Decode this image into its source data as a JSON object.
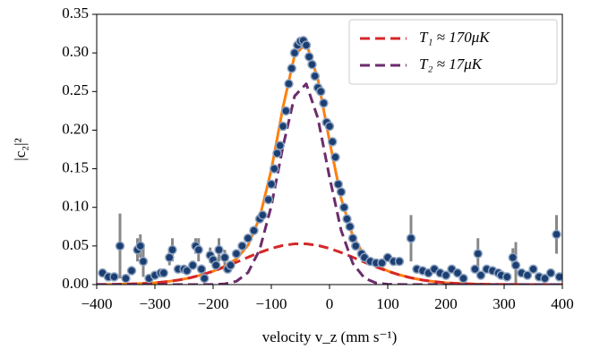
{
  "chart_data": {
    "type": "line",
    "x_label": "velocity v_z (mm s⁻¹)",
    "y_label": "|c₂|²",
    "xlim": [
      -400,
      400
    ],
    "ylim": [
      0,
      0.35
    ],
    "xticks": [
      {
        "value": -400,
        "label": "−400"
      },
      {
        "value": -300,
        "label": "−300"
      },
      {
        "value": -200,
        "label": "−200"
      },
      {
        "value": -100,
        "label": "−100"
      },
      0,
      100,
      200,
      300,
      400
    ],
    "yticks": [
      {
        "value": 0,
        "label": "0.00"
      },
      {
        "value": 0.05,
        "label": "0.05"
      },
      {
        "value": 0.1,
        "label": "0.10"
      },
      {
        "value": 0.15,
        "label": "0.15"
      },
      {
        "value": 0.2,
        "label": "0.20"
      },
      {
        "value": 0.25,
        "label": "0.25"
      },
      {
        "value": 0.3,
        "label": "0.30"
      },
      {
        "value": 0.35,
        "label": "0.35"
      }
    ],
    "legend": "upper right",
    "x": [
      -400,
      -380,
      -360,
      -340,
      -320,
      -300,
      -280,
      -260,
      -240,
      -220,
      -200,
      -180,
      -160,
      -140,
      -120,
      -100,
      -80,
      -60,
      -40,
      -20,
      0,
      20,
      40,
      60,
      80,
      100,
      120,
      140,
      160,
      180,
      200,
      220,
      240,
      260,
      280,
      300,
      320,
      340,
      360,
      380,
      400
    ],
    "series": [
      {
        "color": "#ff7f0e",
        "dashed": false,
        "values": [
          0.0001,
          0.0002,
          0.0004,
          0.0008,
          0.0014,
          0.0023,
          0.0038,
          0.0058,
          0.0087,
          0.0125,
          0.0173,
          0.0237,
          0.0331,
          0.051,
          0.0867,
          0.1486,
          0.2294,
          0.2969,
          0.3127,
          0.2662,
          0.1859,
          0.1115,
          0.0628,
          0.0373,
          0.0248,
          0.0176,
          0.0126,
          0.0087,
          0.0058,
          0.0038,
          0.0023,
          0.0014,
          0.0008,
          0.0004,
          0.0002,
          0.0001,
          0.0001,
          0,
          0,
          0,
          0
        ]
      },
      {
        "name": "T₁ ≈ 170μK",
        "color": "#d62728",
        "dashed": true,
        "values": [
          0.0001,
          0.0002,
          0.0004,
          0.0008,
          0.0014,
          0.0023,
          0.0038,
          0.0058,
          0.0087,
          0.0125,
          0.0172,
          0.0228,
          0.0289,
          0.0354,
          0.0415,
          0.0468,
          0.0507,
          0.0527,
          0.0527,
          0.0507,
          0.0468,
          0.0415,
          0.0354,
          0.0289,
          0.0228,
          0.0172,
          0.0125,
          0.0087,
          0.0058,
          0.0038,
          0.0023,
          0.0014,
          0.0008,
          0.0004,
          0.0002,
          0.0001,
          0.0001,
          0,
          0,
          0,
          0
        ]
      },
      {
        "name": "T₂ ≈ 17μK",
        "color": "#6b2c6b",
        "dashed": true,
        "values": [
          0,
          0,
          0,
          0,
          0,
          0,
          0,
          0,
          0,
          0,
          0.0001,
          0.0009,
          0.0042,
          0.0156,
          0.0452,
          0.1018,
          0.1787,
          0.2442,
          0.26,
          0.2155,
          0.1391,
          0.07,
          0.0274,
          0.0084,
          0.002,
          0.0004,
          0.0001,
          0,
          0,
          0,
          0,
          0,
          0,
          0,
          0,
          0,
          0,
          0,
          0,
          0,
          0
        ]
      }
    ],
    "points": {
      "color": "#1b3f73",
      "edge": "#8fa3bf",
      "error_color": "#888888",
      "x": [
        -390,
        -380,
        -370,
        -360,
        -350,
        -340,
        -330,
        -325,
        -320,
        -310,
        -300,
        -290,
        -285,
        -275,
        -270,
        -260,
        -250,
        -245,
        -235,
        -230,
        -225,
        -220,
        -215,
        -205,
        -200,
        -195,
        -190,
        -180,
        -175,
        -170,
        -160,
        -150,
        -140,
        -130,
        -120,
        -115,
        -105,
        -100,
        -95,
        -90,
        -85,
        -80,
        -75,
        -70,
        -65,
        -60,
        -55,
        -50,
        -45,
        -40,
        -35,
        -30,
        -25,
        -20,
        -15,
        -10,
        -5,
        0,
        5,
        10,
        15,
        20,
        25,
        30,
        35,
        40,
        45,
        55,
        60,
        70,
        80,
        90,
        100,
        110,
        120,
        140,
        150,
        160,
        170,
        180,
        190,
        200,
        210,
        220,
        230,
        250,
        255,
        260,
        270,
        280,
        290,
        295,
        305,
        315,
        320,
        330,
        340,
        350,
        360,
        370,
        380,
        390,
        395
      ],
      "values": [
        0.015,
        0.01,
        0.01,
        0.05,
        0.008,
        0.018,
        0.045,
        0.05,
        0.03,
        0.008,
        0.012,
        0.015,
        0.015,
        0.035,
        0.045,
        0.02,
        0.02,
        0.018,
        0.025,
        0.05,
        0.045,
        0.02,
        0.008,
        0.038,
        0.032,
        0.025,
        0.045,
        0.035,
        0.02,
        0.025,
        0.04,
        0.05,
        0.06,
        0.07,
        0.085,
        0.09,
        0.11,
        0.13,
        0.15,
        0.17,
        0.18,
        0.205,
        0.225,
        0.26,
        0.28,
        0.3,
        0.31,
        0.315,
        0.316,
        0.31,
        0.295,
        0.285,
        0.27,
        0.255,
        0.25,
        0.235,
        0.21,
        0.205,
        0.185,
        0.165,
        0.13,
        0.12,
        0.1,
        0.085,
        0.075,
        0.06,
        0.05,
        0.04,
        0.035,
        0.03,
        0.028,
        0.028,
        0.035,
        0.03,
        0.03,
        0.06,
        0.02,
        0.018,
        0.015,
        0.02,
        0.015,
        0.012,
        0.02,
        0.015,
        0.008,
        0.02,
        0.04,
        0.012,
        0.02,
        0.018,
        0.015,
        0.012,
        0.01,
        0.035,
        0.025,
        0.015,
        0.012,
        0.02,
        0.01,
        0.008,
        0.015,
        0.065,
        0.01
      ],
      "errors": [
        0.005,
        0.004,
        0.004,
        0.042,
        0.004,
        0.006,
        0.015,
        0.015,
        0.02,
        0.004,
        0.004,
        0.005,
        0.005,
        0.01,
        0.015,
        0.005,
        0.005,
        0.005,
        0.006,
        0.01,
        0.015,
        0.006,
        0.004,
        0.01,
        0.008,
        0.006,
        0.015,
        0.01,
        0.005,
        0.006,
        0.005,
        0.005,
        0.005,
        0.005,
        0.005,
        0.005,
        0.005,
        0.005,
        0.005,
        0.005,
        0.005,
        0.005,
        0.005,
        0.005,
        0.005,
        0.005,
        0.005,
        0.005,
        0.005,
        0.005,
        0.005,
        0.005,
        0.005,
        0.005,
        0.005,
        0.005,
        0.005,
        0.005,
        0.005,
        0.005,
        0.005,
        0.005,
        0.005,
        0.005,
        0.005,
        0.005,
        0.005,
        0.005,
        0.005,
        0.005,
        0.005,
        0.005,
        0.005,
        0.005,
        0.005,
        0.03,
        0.005,
        0.005,
        0.004,
        0.005,
        0.004,
        0.004,
        0.005,
        0.004,
        0.004,
        0.005,
        0.02,
        0.004,
        0.005,
        0.005,
        0.004,
        0.004,
        0.004,
        0.012,
        0.03,
        0.005,
        0.004,
        0.005,
        0.004,
        0.004,
        0.005,
        0.025,
        0.004
      ]
    }
  }
}
